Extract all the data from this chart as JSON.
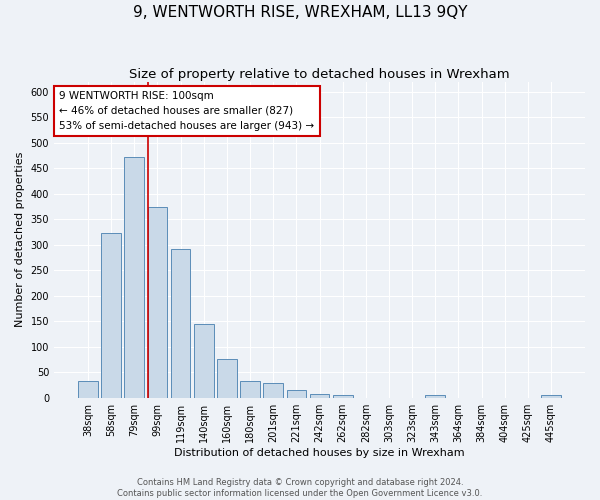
{
  "title": "9, WENTWORTH RISE, WREXHAM, LL13 9QY",
  "subtitle": "Size of property relative to detached houses in Wrexham",
  "xlabel": "Distribution of detached houses by size in Wrexham",
  "ylabel": "Number of detached properties",
  "bar_labels": [
    "38sqm",
    "58sqm",
    "79sqm",
    "99sqm",
    "119sqm",
    "140sqm",
    "160sqm",
    "180sqm",
    "201sqm",
    "221sqm",
    "242sqm",
    "262sqm",
    "282sqm",
    "303sqm",
    "323sqm",
    "343sqm",
    "364sqm",
    "384sqm",
    "404sqm",
    "425sqm",
    "445sqm"
  ],
  "bar_values": [
    32,
    323,
    472,
    375,
    292,
    145,
    75,
    33,
    29,
    16,
    7,
    5,
    0,
    0,
    0,
    5,
    0,
    0,
    0,
    0,
    5
  ],
  "bar_color": "#c9d9e8",
  "bar_edge_color": "#5b8db8",
  "ylim": [
    0,
    620
  ],
  "yticks": [
    0,
    50,
    100,
    150,
    200,
    250,
    300,
    350,
    400,
    450,
    500,
    550,
    600
  ],
  "property_bin_index": 3,
  "vline_color": "#cc0000",
  "annotation_text": "9 WENTWORTH RISE: 100sqm\n← 46% of detached houses are smaller (827)\n53% of semi-detached houses are larger (943) →",
  "annotation_box_color": "#ffffff",
  "annotation_box_edge": "#cc0000",
  "footer_line1": "Contains HM Land Registry data © Crown copyright and database right 2024.",
  "footer_line2": "Contains public sector information licensed under the Open Government Licence v3.0.",
  "background_color": "#eef2f7",
  "grid_color": "#ffffff",
  "title_fontsize": 11,
  "subtitle_fontsize": 9.5,
  "axis_label_fontsize": 8,
  "tick_fontsize": 7,
  "annotation_fontsize": 7.5,
  "footer_fontsize": 6
}
